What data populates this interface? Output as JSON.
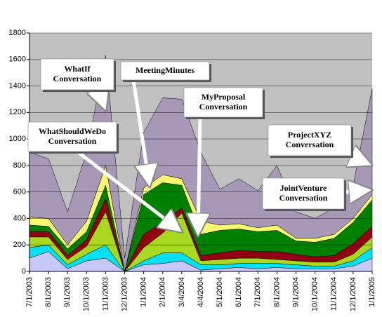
{
  "chart_data": {
    "type": "stacked_area",
    "categories": [
      "7/1/2003",
      "8/1/2003",
      "9/1/2003",
      "10/1/2003",
      "11/1/2003",
      "12/1/2003",
      "1/1/2004",
      "2/1/2004",
      "3/4/2004",
      "4/4/2004",
      "5/1/2004",
      "6/1/2004",
      "7/1/2004",
      "8/1/2004",
      "9/1/2004",
      "10/1/2004",
      "11/1/2004",
      "12/1/2004",
      "1/1/2005"
    ],
    "series": [
      {
        "color": "#c8c8f8",
        "values": [
          100,
          150,
          20,
          80,
          100,
          0,
          50,
          60,
          80,
          10,
          20,
          30,
          20,
          30,
          20,
          20,
          20,
          40,
          100
        ]
      },
      {
        "color": "#00e0f0",
        "values": [
          80,
          50,
          30,
          50,
          100,
          0,
          30,
          80,
          60,
          40,
          30,
          30,
          40,
          30,
          30,
          20,
          20,
          40,
          80
        ]
      },
      {
        "color": "#a8d820",
        "values": [
          80,
          60,
          40,
          60,
          250,
          0,
          100,
          150,
          300,
          30,
          40,
          40,
          40,
          30,
          30,
          30,
          30,
          50,
          80
        ]
      },
      {
        "color": "#900010",
        "values": [
          40,
          40,
          30,
          50,
          100,
          0,
          100,
          80,
          40,
          40,
          50,
          60,
          50,
          60,
          50,
          40,
          50,
          80,
          80
        ]
      },
      {
        "color": "#008000",
        "values": [
          50,
          40,
          50,
          60,
          100,
          0,
          300,
          300,
          170,
          160,
          170,
          160,
          150,
          160,
          100,
          110,
          130,
          160,
          200
        ]
      },
      {
        "color": "#f8f870",
        "values": [
          60,
          60,
          30,
          80,
          150,
          0,
          50,
          60,
          50,
          100,
          40,
          40,
          30,
          40,
          20,
          30,
          30,
          30,
          40
        ]
      },
      {
        "color": "#a898b8",
        "values": [
          490,
          450,
          250,
          520,
          830,
          100,
          420,
          580,
          600,
          520,
          270,
          340,
          280,
          450,
          200,
          150,
          200,
          250,
          800
        ]
      }
    ],
    "ylim": [
      0,
      1800
    ],
    "yticks": [
      0,
      200,
      400,
      600,
      800,
      1000,
      1200,
      1400,
      1600,
      1800
    ],
    "grid": true,
    "annotations": [
      {
        "lines": [
          "WhatIf",
          "Conversation"
        ]
      },
      {
        "lines": [
          "MeetingMinutes"
        ]
      },
      {
        "lines": [
          "MyProposal",
          "Conversation"
        ]
      },
      {
        "lines": [
          "WhatShouldWeDo",
          "Conversation"
        ]
      },
      {
        "lines": [
          "ProjectXYZ",
          "Conversation"
        ]
      },
      {
        "lines": [
          "JointVenture",
          "Conversation"
        ]
      }
    ]
  }
}
